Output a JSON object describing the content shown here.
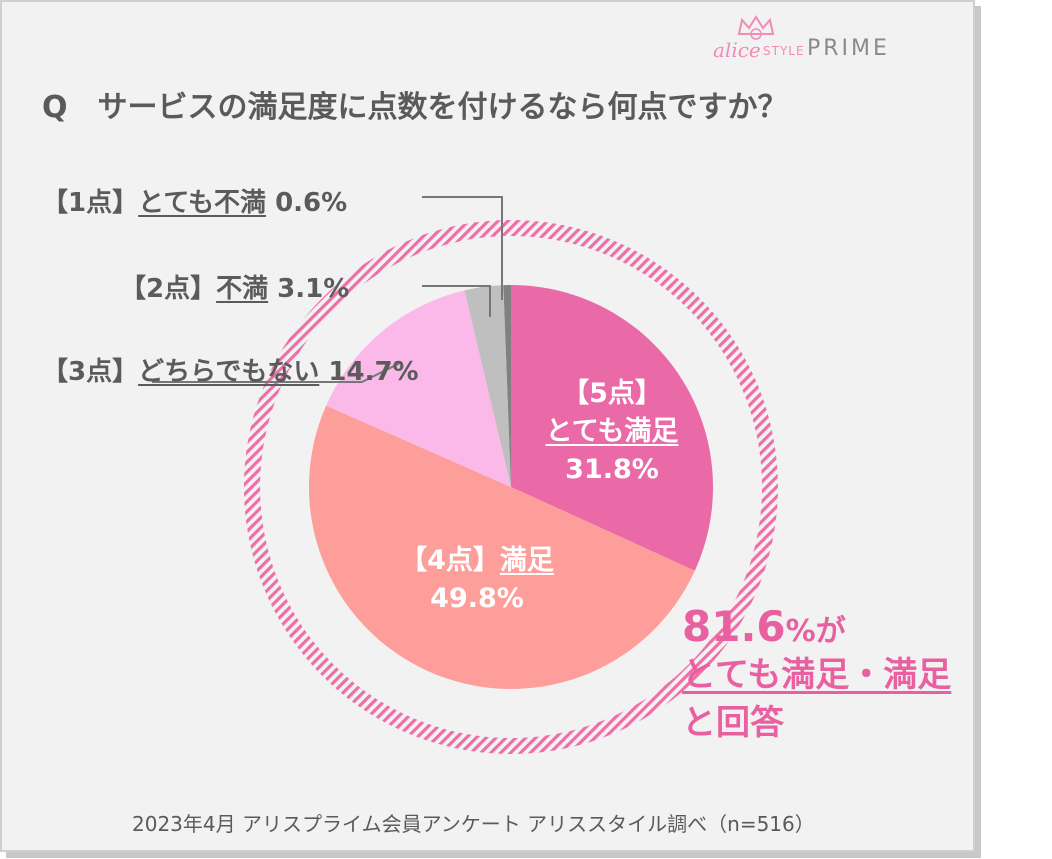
{
  "brand": {
    "alice": "alice",
    "style": "STYLE",
    "prime": "PRIME"
  },
  "question": {
    "mark": "Q",
    "text": "サービスの満足度に点数を付けるなら何点ですか？"
  },
  "colors": {
    "very_satisfied": "#e96aa6",
    "satisfied": "#fe9e9b",
    "neutral": "#fbb9ea",
    "unsatisfied": "#bfbfbf",
    "very_unsatisfied": "#808080",
    "ring": "#ee6fa8",
    "summary": "#e8609f"
  },
  "labels": {
    "p1": {
      "bracket": "【1点】",
      "name": "とても不満",
      "value": "0.6%"
    },
    "p2": {
      "bracket": "【2点】",
      "name": "不満",
      "value": "3.1%"
    },
    "p3": {
      "bracket": "【3点】",
      "name": "どちらでもない",
      "value": "14.7%"
    },
    "p4": {
      "bracket": "【4点】",
      "name": "満足",
      "value": "49.8%"
    },
    "p5": {
      "bracket": "【5点】",
      "name": "とても満足",
      "value": "31.8%"
    }
  },
  "summary": {
    "number": "81.6",
    "unit_suffix": "%が",
    "line2": "とても満足・満足",
    "line3": "と回答"
  },
  "footer": "2023年4月 アリスプライム会員アンケート アリススタイル調べ（n=516）",
  "chart_data": {
    "type": "pie",
    "title": "Q　サービスの満足度に点数を付けるなら何点ですか？",
    "categories": [
      "【5点】とても満足",
      "【4点】満足",
      "【3点】どちらでもない",
      "【2点】不満",
      "【1点】とても不満"
    ],
    "values": [
      31.8,
      49.8,
      14.7,
      3.1,
      0.6
    ],
    "start": "12 o'clock",
    "direction": "clockwise",
    "annotation": "81.6%がとても満足・満足と回答"
  }
}
